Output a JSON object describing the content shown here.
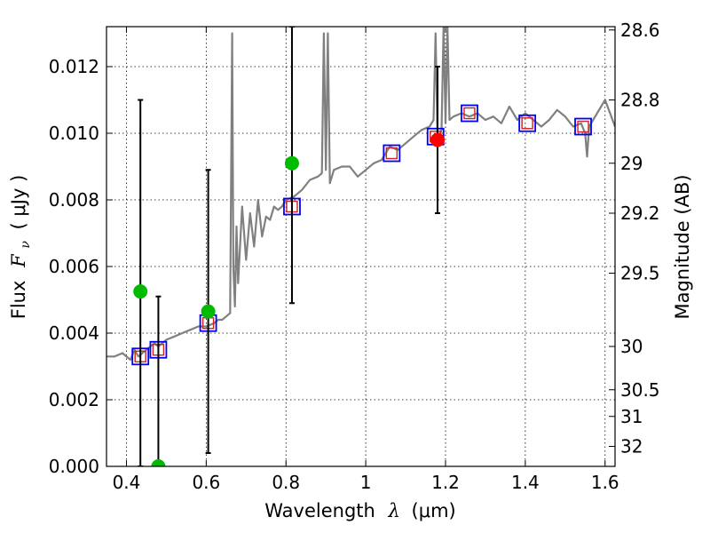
{
  "chart_data": {
    "type": "line",
    "xlabel": "Wavelength",
    "xlabel_symbol": "λ",
    "xlabel_unit": "(μm)",
    "ylabel": "Flux",
    "ylabel_symbol": "F",
    "ylabel_subscript": "ν",
    "ylabel_unit": "( μJy )",
    "ylabel_right": "Magnitude (AB)",
    "xlim": [
      0.35,
      1.625
    ],
    "ylim": [
      0.0,
      0.0132
    ],
    "grid": true,
    "x_ticks": [
      0.4,
      0.6,
      0.8,
      1.0,
      1.2,
      1.4,
      1.6
    ],
    "x_tick_labels": [
      "0.4",
      "0.6",
      "0.8",
      "1",
      "1.2",
      "1.4",
      "1.6"
    ],
    "y_ticks": [
      0.0,
      0.002,
      0.004,
      0.006,
      0.008,
      0.01,
      0.012
    ],
    "y_tick_labels": [
      "0.000",
      "0.002",
      "0.004",
      "0.006",
      "0.008",
      "0.010",
      "0.012"
    ],
    "right_ticks": [
      {
        "label": "28.6",
        "flux": 0.0131
      },
      {
        "label": "28.8",
        "flux": 0.011
      },
      {
        "label": "29",
        "flux": 0.0091
      },
      {
        "label": "29.2",
        "flux": 0.0076
      },
      {
        "label": "29.5",
        "flux": 0.0058
      },
      {
        "label": "30",
        "flux": 0.0036
      },
      {
        "label": "30.5",
        "flux": 0.0023
      },
      {
        "label": "31",
        "flux": 0.0015
      },
      {
        "label": "32",
        "flux": 0.0006
      }
    ],
    "colors": {
      "spectrum": "#808080",
      "model_box": "#0000ff",
      "model_inner": "#cc2222",
      "detection": "#ff0000",
      "upper_limit": "#00bb00",
      "errorbar": "#000000"
    },
    "series": [
      {
        "name": "spectrum",
        "style": "line",
        "x": [
          0.35,
          0.37,
          0.39,
          0.4,
          0.41,
          0.42,
          0.43,
          0.44,
          0.45,
          0.46,
          0.47,
          0.48,
          0.49,
          0.5,
          0.52,
          0.54,
          0.56,
          0.58,
          0.6,
          0.62,
          0.63,
          0.64,
          0.65,
          0.66,
          0.665,
          0.668,
          0.672,
          0.676,
          0.68,
          0.69,
          0.7,
          0.71,
          0.72,
          0.73,
          0.74,
          0.75,
          0.76,
          0.77,
          0.78,
          0.79,
          0.8,
          0.82,
          0.84,
          0.86,
          0.88,
          0.89,
          0.895,
          0.9,
          0.905,
          0.91,
          0.92,
          0.94,
          0.96,
          0.98,
          1.0,
          1.02,
          1.04,
          1.06,
          1.08,
          1.1,
          1.12,
          1.14,
          1.16,
          1.17,
          1.175,
          1.18,
          1.19,
          1.195,
          1.2,
          1.205,
          1.21,
          1.22,
          1.24,
          1.26,
          1.28,
          1.3,
          1.32,
          1.34,
          1.36,
          1.38,
          1.4,
          1.42,
          1.44,
          1.46,
          1.48,
          1.5,
          1.52,
          1.54,
          1.55,
          1.555,
          1.56,
          1.58,
          1.6,
          1.625
        ],
        "y": [
          0.0033,
          0.0033,
          0.0034,
          0.0033,
          0.0032,
          0.0035,
          0.0033,
          0.0034,
          0.0035,
          0.0036,
          0.0037,
          0.0036,
          0.0037,
          0.0038,
          0.0039,
          0.004,
          0.0041,
          0.0042,
          0.0042,
          0.0043,
          0.0044,
          0.0044,
          0.0045,
          0.0046,
          0.013,
          0.006,
          0.0048,
          0.0072,
          0.0055,
          0.0078,
          0.0062,
          0.0076,
          0.0066,
          0.008,
          0.0069,
          0.0075,
          0.0074,
          0.0078,
          0.0077,
          0.0078,
          0.008,
          0.0081,
          0.0083,
          0.0086,
          0.0087,
          0.0088,
          0.013,
          0.0089,
          0.013,
          0.0085,
          0.0089,
          0.009,
          0.009,
          0.0087,
          0.0089,
          0.0091,
          0.0092,
          0.0096,
          0.0095,
          0.0097,
          0.0099,
          0.0101,
          0.0102,
          0.0104,
          0.013,
          0.0098,
          0.0101,
          0.0132,
          0.0103,
          0.0132,
          0.0104,
          0.0105,
          0.0106,
          0.0105,
          0.0106,
          0.0104,
          0.0105,
          0.0103,
          0.0108,
          0.0104,
          0.0106,
          0.0104,
          0.0102,
          0.0104,
          0.0107,
          0.0105,
          0.0102,
          0.0103,
          0.01,
          0.0093,
          0.0102,
          0.0106,
          0.011,
          0.0102
        ]
      },
      {
        "name": "model photometry",
        "style": "box",
        "x": [
          0.435,
          0.48,
          0.605,
          0.815,
          1.065,
          1.175,
          1.26,
          1.405,
          1.545
        ],
        "y": [
          0.0033,
          0.0035,
          0.0043,
          0.0078,
          0.0094,
          0.0099,
          0.0106,
          0.0103,
          0.0102
        ]
      },
      {
        "name": "upper limits",
        "style": "circle",
        "x": [
          0.435,
          0.48,
          0.605,
          0.815
        ],
        "y": [
          0.00525,
          0.0,
          0.00465,
          0.0091
        ],
        "yerr_upper": [
          0.011,
          0.0051,
          0.0089,
          0.0132
        ],
        "yerr_lower": [
          0.0,
          0.0,
          0.0004,
          0.0049
        ]
      },
      {
        "name": "detection",
        "style": "circle",
        "x": [
          1.18
        ],
        "y": [
          0.0098
        ],
        "yerr_upper": [
          0.012
        ],
        "yerr_lower": [
          0.0076
        ]
      }
    ]
  }
}
